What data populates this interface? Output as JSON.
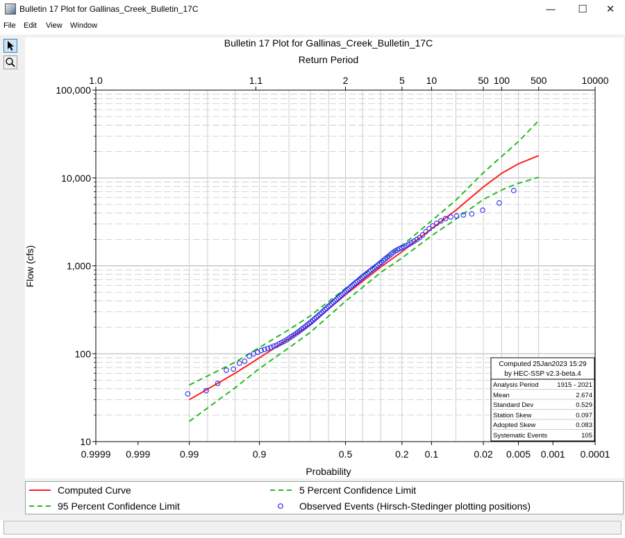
{
  "window": {
    "title": "Bulletin 17 Plot for Gallinas_Creek_Bulletin_17C",
    "minimize_glyph": "—",
    "maximize_glyph": "☐",
    "close_glyph": "✕"
  },
  "menu": [
    {
      "label": "File"
    },
    {
      "label": "Edit"
    },
    {
      "label": "View"
    },
    {
      "label": "Window"
    }
  ],
  "toolbar": [
    {
      "icon": "pointer-arrow-icon"
    },
    {
      "icon": "magnifier-icon"
    }
  ],
  "colors": {
    "computed": "#ff2020",
    "confidence": "#22bb22",
    "observed": "#2a2aee",
    "grid": "#c8c8c8"
  },
  "chart_data": {
    "type": "line",
    "title": "Bulletin 17 Plot for Gallinas_Creek_Bulletin_17C",
    "xlabel": "Probability",
    "x2label": "Return Period",
    "ylabel": "Flow (cfs)",
    "x_scale": "normal-probability (exceedance, decreasing left to right)",
    "y_scale": "log",
    "ylim": [
      10,
      100000
    ],
    "xlim": [
      0.9999,
      0.0001
    ],
    "grid": true,
    "x_ticks": [
      {
        "p": 0.9999,
        "label": "0.9999"
      },
      {
        "p": 0.999,
        "label": "0.999"
      },
      {
        "p": 0.99,
        "label": "0.99"
      },
      {
        "p": 0.9,
        "label": "0.9"
      },
      {
        "p": 0.5,
        "label": "0.5"
      },
      {
        "p": 0.2,
        "label": "0.2"
      },
      {
        "p": 0.1,
        "label": "0.1"
      },
      {
        "p": 0.02,
        "label": "0.02"
      },
      {
        "p": 0.005,
        "label": "0.005"
      },
      {
        "p": 0.001,
        "label": "0.001"
      },
      {
        "p": 0.0001,
        "label": "0.0001"
      }
    ],
    "x_minor_p": [
      0.99,
      0.98,
      0.95,
      0.9,
      0.8,
      0.7,
      0.6,
      0.5,
      0.4,
      0.3,
      0.2,
      0.1,
      0.05,
      0.02,
      0.01,
      0.005,
      0.002
    ],
    "top_ticks": [
      {
        "p": 0.9999,
        "label": "1.0"
      },
      {
        "p": 0.90909,
        "label": "1.1"
      },
      {
        "p": 0.5,
        "label": "2"
      },
      {
        "p": 0.2,
        "label": "5"
      },
      {
        "p": 0.1,
        "label": "10"
      },
      {
        "p": 0.02,
        "label": "50"
      },
      {
        "p": 0.01,
        "label": "100"
      },
      {
        "p": 0.002,
        "label": "500"
      },
      {
        "p": 0.0001,
        "label": "10000"
      }
    ],
    "y_ticks": [
      {
        "v": 10,
        "label": "10"
      },
      {
        "v": 100,
        "label": "100"
      },
      {
        "v": 1000,
        "label": "1,000"
      },
      {
        "v": 10000,
        "label": "10,000"
      },
      {
        "v": 100000,
        "label": "100,000"
      }
    ],
    "series": [
      {
        "name": "Computed Curve",
        "style": "solid",
        "color": "#ff2020",
        "x": [
          0.99,
          0.95,
          0.9,
          0.8,
          0.7,
          0.5,
          0.3,
          0.2,
          0.1,
          0.05,
          0.02,
          0.01,
          0.005,
          0.002
        ],
        "y": [
          30,
          60,
          90,
          148,
          215,
          470,
          970,
          1450,
          2650,
          4300,
          7900,
          11300,
          14500,
          18000
        ]
      },
      {
        "name": "5 Percent Confidence Limit",
        "style": "dashed",
        "color": "#22bb22",
        "x": [
          0.99,
          0.95,
          0.9,
          0.8,
          0.7,
          0.5,
          0.3,
          0.2,
          0.1,
          0.05,
          0.02,
          0.01,
          0.005,
          0.002
        ],
        "y": [
          44,
          80,
          118,
          188,
          270,
          555,
          1120,
          1700,
          3250,
          5600,
          11500,
          17600,
          26000,
          45000
        ]
      },
      {
        "name": "95 Percent Confidence Limit",
        "style": "dashed",
        "color": "#22bb22",
        "x": [
          0.99,
          0.95,
          0.9,
          0.8,
          0.7,
          0.5,
          0.3,
          0.2,
          0.1,
          0.05,
          0.02,
          0.01,
          0.005,
          0.002
        ],
        "y": [
          17,
          41,
          68,
          117,
          175,
          395,
          840,
          1230,
          2200,
          3400,
          5700,
          7300,
          8700,
          10200
        ]
      },
      {
        "name": "Observed Events (Hirsch-Stedinger plotting positions)",
        "style": "markers",
        "color": "#2a2aee",
        "points": [
          [
            0.9906,
            35
          ],
          [
            0.981,
            38
          ],
          [
            0.9715,
            46
          ],
          [
            0.962,
            65
          ],
          [
            0.9525,
            67
          ],
          [
            0.943,
            78
          ],
          [
            0.9335,
            82
          ],
          [
            0.924,
            94
          ],
          [
            0.9145,
            100
          ],
          [
            0.9049,
            104
          ],
          [
            0.8954,
            109
          ],
          [
            0.8859,
            112
          ],
          [
            0.8764,
            115
          ],
          [
            0.8669,
            118
          ],
          [
            0.8574,
            122
          ],
          [
            0.8479,
            125
          ],
          [
            0.8384,
            130
          ],
          [
            0.8289,
            134
          ],
          [
            0.8194,
            139
          ],
          [
            0.8098,
            144
          ],
          [
            0.8003,
            150
          ],
          [
            0.7908,
            156
          ],
          [
            0.7813,
            162
          ],
          [
            0.7718,
            168
          ],
          [
            0.7623,
            175
          ],
          [
            0.7528,
            182
          ],
          [
            0.7433,
            190
          ],
          [
            0.7338,
            197
          ],
          [
            0.7243,
            205
          ],
          [
            0.7147,
            213
          ],
          [
            0.7052,
            222
          ],
          [
            0.6957,
            230
          ],
          [
            0.6862,
            240
          ],
          [
            0.6767,
            250
          ],
          [
            0.6672,
            260
          ],
          [
            0.6577,
            270
          ],
          [
            0.6482,
            282
          ],
          [
            0.6387,
            293
          ],
          [
            0.6292,
            305
          ],
          [
            0.6196,
            318
          ],
          [
            0.6101,
            330
          ],
          [
            0.6006,
            344
          ],
          [
            0.5911,
            357
          ],
          [
            0.5816,
            371
          ],
          [
            0.5721,
            385
          ],
          [
            0.5626,
            400
          ],
          [
            0.5531,
            415
          ],
          [
            0.5436,
            432
          ],
          [
            0.5341,
            448
          ],
          [
            0.5245,
            465
          ],
          [
            0.515,
            482
          ],
          [
            0.5055,
            500
          ],
          [
            0.496,
            518
          ],
          [
            0.4865,
            538
          ],
          [
            0.477,
            558
          ],
          [
            0.4675,
            578
          ],
          [
            0.458,
            600
          ],
          [
            0.4485,
            622
          ],
          [
            0.439,
            645
          ],
          [
            0.4294,
            668
          ],
          [
            0.4199,
            692
          ],
          [
            0.4104,
            718
          ],
          [
            0.4009,
            744
          ],
          [
            0.3914,
            770
          ],
          [
            0.3819,
            798
          ],
          [
            0.3724,
            826
          ],
          [
            0.3629,
            855
          ],
          [
            0.3534,
            886
          ],
          [
            0.3439,
            918
          ],
          [
            0.3343,
            950
          ],
          [
            0.3248,
            985
          ],
          [
            0.3153,
            1020
          ],
          [
            0.3058,
            1060
          ],
          [
            0.2963,
            1100
          ],
          [
            0.2868,
            1150
          ],
          [
            0.2773,
            1200
          ],
          [
            0.2678,
            1250
          ],
          [
            0.2583,
            1300
          ],
          [
            0.2488,
            1360
          ],
          [
            0.2392,
            1420
          ],
          [
            0.2297,
            1480
          ],
          [
            0.2202,
            1520
          ],
          [
            0.2107,
            1570
          ],
          [
            0.2012,
            1610
          ],
          [
            0.1917,
            1650
          ],
          [
            0.1822,
            1700
          ],
          [
            0.1727,
            1760
          ],
          [
            0.1632,
            1830
          ],
          [
            0.1537,
            1910
          ],
          [
            0.1441,
            2000
          ],
          [
            0.1346,
            2100
          ],
          [
            0.1251,
            2250
          ],
          [
            0.1156,
            2450
          ],
          [
            0.1061,
            2650
          ],
          [
            0.0966,
            2850
          ],
          [
            0.0871,
            3050
          ],
          [
            0.0776,
            3250
          ],
          [
            0.0681,
            3450
          ],
          [
            0.0586,
            3600
          ],
          [
            0.049,
            3700
          ],
          [
            0.0395,
            3800
          ],
          [
            0.03,
            3900
          ],
          [
            0.0205,
            4300
          ],
          [
            0.011,
            5200
          ],
          [
            0.0061,
            7200
          ]
        ]
      }
    ],
    "legend_position": "bottom",
    "annotation": {
      "header1": "Computed 25Jan2023 15:29",
      "header2": "by HEC-SSP v2.3-beta.4",
      "rows": [
        {
          "label": "Analysis Period",
          "value": "1915 - 2021"
        },
        {
          "label": "Mean",
          "value": "2.674"
        },
        {
          "label": "Standard Dev",
          "value": "0.529"
        },
        {
          "label": "Station Skew",
          "value": "0.097"
        },
        {
          "label": "Adopted Skew",
          "value": "0.083"
        },
        {
          "label": "Systematic Events",
          "value": "105"
        }
      ]
    }
  }
}
